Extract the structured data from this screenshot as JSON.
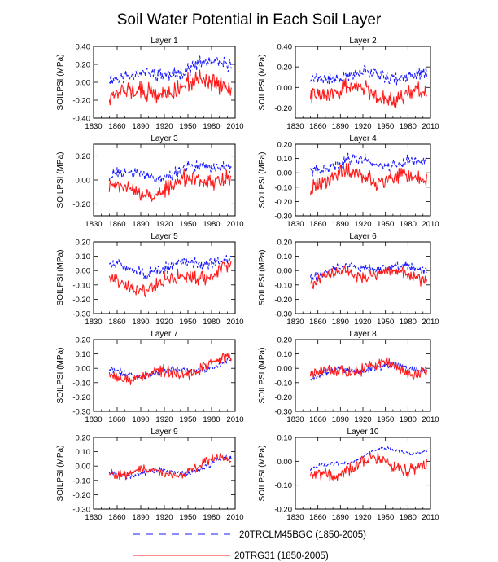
{
  "chart_data": {
    "type": "line",
    "title": "Soil Water Potential in Each Soil Layer",
    "ylabel": "SOILPSI  (MPa)",
    "x_ticks": [
      1830,
      1860,
      1890,
      1920,
      1950,
      1980,
      2010
    ],
    "xlim": [
      1830,
      2010
    ],
    "colors": {
      "clm45": "#1a1aff",
      "rg31": "#ff1a1a"
    },
    "legend": [
      {
        "key": "clm45",
        "label": "20TRCLM45BGC (1850-2005)",
        "style": "dashed"
      },
      {
        "key": "rg31",
        "label": "20TRG31 (1850-2005)",
        "style": "solid"
      }
    ],
    "panels": [
      {
        "title": "Layer 1",
        "ylim": [
          -0.4,
          0.4
        ],
        "yticks": [
          -0.4,
          -0.2,
          0.0,
          0.2,
          0.4
        ],
        "tick_labels": [
          "-0.40",
          "-0.20",
          "0.00",
          "0.20",
          "0.40"
        ],
        "series": {
          "clm45": {
            "base": 0.08,
            "trend": 0.1,
            "amp": 0.07,
            "noise": 0.09,
            "seed": 11
          },
          "rg31": {
            "base": -0.1,
            "trend": 0.06,
            "amp": 0.09,
            "noise": 0.13,
            "seed": 12
          }
        }
      },
      {
        "title": "Layer 2",
        "ylim": [
          -0.3,
          0.4
        ],
        "yticks": [
          -0.2,
          0.0,
          0.2,
          0.4
        ],
        "tick_labels": [
          "-0.20",
          "0.00",
          "0.20",
          "0.40"
        ],
        "series": {
          "clm45": {
            "base": 0.07,
            "trend": 0.08,
            "amp": 0.06,
            "noise": 0.07,
            "seed": 21
          },
          "rg31": {
            "base": -0.08,
            "trend": 0.05,
            "amp": 0.09,
            "noise": 0.1,
            "seed": 22
          }
        }
      },
      {
        "title": "Layer 3",
        "ylim": [
          -0.3,
          0.3
        ],
        "yticks": [
          -0.2,
          0.0,
          0.2
        ],
        "tick_labels": [
          "-0.20",
          "0.00",
          "0.20"
        ],
        "series": {
          "clm45": {
            "base": 0.04,
            "trend": 0.07,
            "amp": 0.05,
            "noise": 0.06,
            "seed": 31
          },
          "rg31": {
            "base": -0.07,
            "trend": 0.06,
            "amp": 0.08,
            "noise": 0.08,
            "seed": 32
          }
        }
      },
      {
        "title": "Layer 4",
        "ylim": [
          -0.3,
          0.2
        ],
        "yticks": [
          -0.3,
          -0.2,
          -0.1,
          0.0,
          0.1,
          0.2
        ],
        "tick_labels": [
          "-0.30",
          "-0.20",
          "-0.10",
          "0.00",
          "0.10",
          "0.20"
        ],
        "series": {
          "clm45": {
            "base": 0.03,
            "trend": 0.06,
            "amp": 0.05,
            "noise": 0.05,
            "seed": 41
          },
          "rg31": {
            "base": -0.08,
            "trend": 0.07,
            "amp": 0.07,
            "noise": 0.07,
            "seed": 42
          }
        }
      },
      {
        "title": "Layer 5",
        "ylim": [
          -0.3,
          0.2
        ],
        "yticks": [
          -0.3,
          -0.2,
          -0.1,
          0.0,
          0.1,
          0.2
        ],
        "tick_labels": [
          "-0.30",
          "-0.20",
          "-0.10",
          "0.00",
          "0.10",
          "0.20"
        ],
        "series": {
          "clm45": {
            "base": 0.01,
            "trend": 0.06,
            "amp": 0.05,
            "noise": 0.05,
            "seed": 51
          },
          "rg31": {
            "base": -0.09,
            "trend": 0.07,
            "amp": 0.07,
            "noise": 0.06,
            "seed": 52
          }
        }
      },
      {
        "title": "Layer 6",
        "ylim": [
          -0.3,
          0.2
        ],
        "yticks": [
          -0.3,
          -0.2,
          -0.1,
          0.0,
          0.1,
          0.2
        ],
        "tick_labels": [
          "-0.30",
          "-0.20",
          "-0.10",
          "0.00",
          "0.10",
          "0.20"
        ],
        "series": {
          "clm45": {
            "base": -0.02,
            "trend": 0.05,
            "amp": 0.04,
            "noise": 0.04,
            "seed": 61
          },
          "rg31": {
            "base": -0.07,
            "trend": 0.07,
            "amp": 0.06,
            "noise": 0.05,
            "seed": 62
          }
        }
      },
      {
        "title": "Layer 7",
        "ylim": [
          -0.3,
          0.2
        ],
        "yticks": [
          -0.3,
          -0.2,
          -0.1,
          0.0,
          0.1,
          0.2
        ],
        "tick_labels": [
          "-0.30",
          "-0.20",
          "-0.10",
          "0.00",
          "0.10",
          "0.20"
        ],
        "series": {
          "clm45": {
            "base": -0.04,
            "trend": 0.06,
            "amp": 0.04,
            "noise": 0.03,
            "seed": 71
          },
          "rg31": {
            "base": -0.05,
            "trend": 0.07,
            "amp": 0.06,
            "noise": 0.05,
            "seed": 72
          }
        }
      },
      {
        "title": "Layer 8",
        "ylim": [
          -0.3,
          0.2
        ],
        "yticks": [
          -0.3,
          -0.2,
          -0.1,
          0.0,
          0.1,
          0.2
        ],
        "tick_labels": [
          "-0.30",
          "-0.20",
          "-0.10",
          "0.00",
          "0.10",
          "0.20"
        ],
        "series": {
          "clm45": {
            "base": -0.05,
            "trend": 0.07,
            "amp": 0.04,
            "noise": 0.03,
            "seed": 81
          },
          "rg31": {
            "base": -0.05,
            "trend": 0.07,
            "amp": 0.06,
            "noise": 0.05,
            "seed": 82
          }
        }
      },
      {
        "title": "Layer 9",
        "ylim": [
          -0.3,
          0.2
        ],
        "yticks": [
          -0.3,
          -0.2,
          -0.1,
          0.0,
          0.1,
          0.2
        ],
        "tick_labels": [
          "-0.30",
          "-0.20",
          "-0.10",
          "0.00",
          "0.10",
          "0.20"
        ],
        "series": {
          "clm45": {
            "base": -0.06,
            "trend": 0.08,
            "amp": 0.05,
            "noise": 0.025,
            "seed": 91
          },
          "rg31": {
            "base": -0.05,
            "trend": 0.07,
            "amp": 0.06,
            "noise": 0.04,
            "seed": 92
          }
        }
      },
      {
        "title": "Layer 10",
        "ylim": [
          -0.2,
          0.1
        ],
        "yticks": [
          -0.2,
          -0.1,
          0.0,
          0.1
        ],
        "tick_labels": [
          "-0.20",
          "-0.10",
          "0.00",
          "0.10"
        ],
        "series": {
          "clm45": {
            "base": -0.03,
            "trend": 0.09,
            "amp": 0.03,
            "noise": 0.01,
            "seed": 101
          },
          "rg31": {
            "base": -0.06,
            "trend": 0.06,
            "amp": 0.05,
            "noise": 0.035,
            "seed": 102
          }
        }
      }
    ]
  }
}
